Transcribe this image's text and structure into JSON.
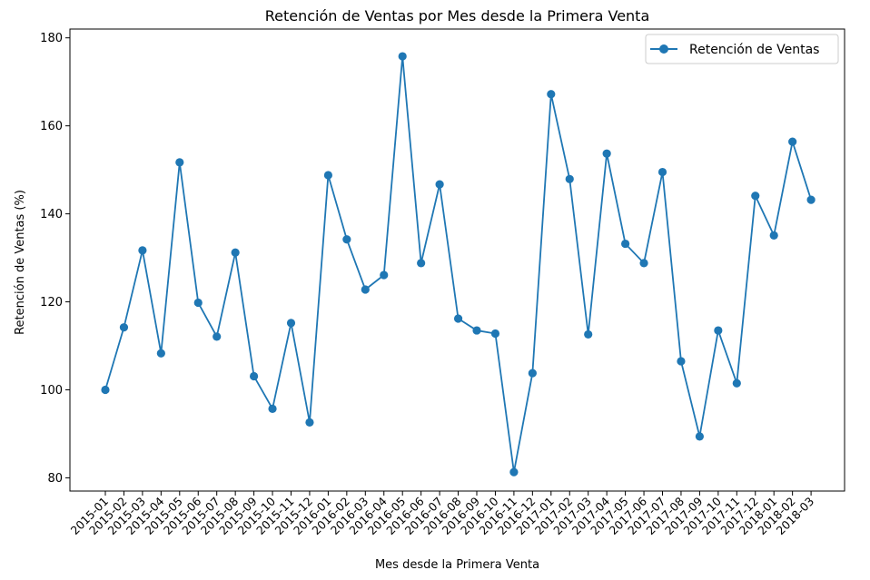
{
  "chart_data": {
    "type": "line",
    "title": "Retención de Ventas por Mes desde la Primera Venta",
    "xlabel": "Mes desde la Primera Venta",
    "ylabel": "Retención de Ventas (%)",
    "ylim": [
      77,
      182
    ],
    "yticks": [
      80,
      100,
      120,
      140,
      160,
      180
    ],
    "grid": false,
    "legend_position": "top-right",
    "categories": [
      "2015-01",
      "2015-02",
      "2015-03",
      "2015-04",
      "2015-05",
      "2015-06",
      "2015-07",
      "2015-08",
      "2015-09",
      "2015-10",
      "2015-11",
      "2015-12",
      "2016-01",
      "2016-02",
      "2016-03",
      "2016-04",
      "2016-05",
      "2016-06",
      "2016-07",
      "2016-08",
      "2016-09",
      "2016-10",
      "2016-11",
      "2016-12",
      "2017-01",
      "2017-02",
      "2017-03",
      "2017-04",
      "2017-05",
      "2017-06",
      "2017-07",
      "2017-08",
      "2017-09",
      "2017-10",
      "2017-11",
      "2017-12",
      "2018-01",
      "2018-02",
      "2018-03"
    ],
    "series": [
      {
        "name": "Retención de Ventas",
        "color": "#1f77b4",
        "marker": "circle",
        "values": [
          100,
          114.2,
          131.7,
          108.3,
          151.7,
          119.8,
          112.1,
          131.2,
          103.1,
          95.7,
          115.2,
          92.6,
          148.8,
          134.2,
          122.8,
          126.1,
          175.8,
          128.8,
          146.7,
          116.2,
          113.5,
          112.8,
          81.3,
          103.8,
          167.2,
          147.9,
          112.6,
          153.7,
          133.2,
          128.8,
          149.5,
          106.5,
          89.4,
          113.5,
          101.5,
          144.1,
          135.1,
          156.4,
          143.2
        ]
      }
    ]
  }
}
